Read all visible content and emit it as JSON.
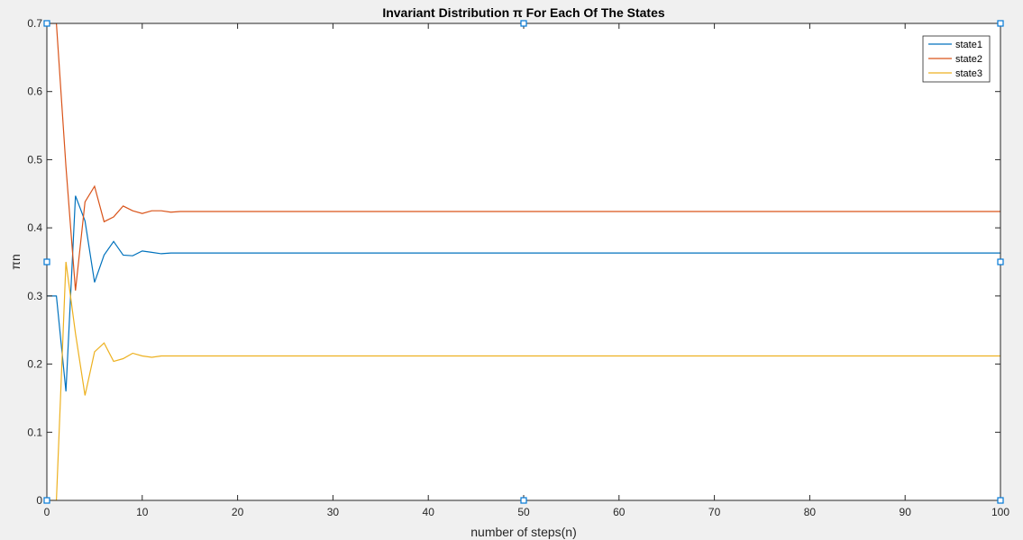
{
  "chart_data": {
    "type": "line",
    "title": "Invariant Distribution π For Each Of The States",
    "xlabel": "number of steps(n)",
    "ylabel": "πn",
    "xlim": [
      0,
      100
    ],
    "ylim": [
      0,
      0.7
    ],
    "x_ticks": [
      "0",
      "10",
      "20",
      "30",
      "40",
      "50",
      "60",
      "70",
      "80",
      "90",
      "100"
    ],
    "y_ticks": [
      "0",
      "0.1",
      "0.2",
      "0.3",
      "0.4",
      "0.5",
      "0.6",
      "0.7"
    ],
    "grid": false,
    "legend_position": "top-right",
    "x": [
      0,
      1,
      2,
      3,
      4,
      5,
      6,
      7,
      8,
      9,
      10,
      11,
      12,
      13,
      14,
      15,
      16,
      17,
      18,
      19,
      20,
      100
    ],
    "series": [
      {
        "name": "state1",
        "color": "#0072BD",
        "values": [
          0.3,
          0.3,
          0.16,
          0.447,
          0.41,
          0.32,
          0.36,
          0.38,
          0.36,
          0.359,
          0.366,
          0.364,
          0.362,
          0.363,
          0.363,
          0.363,
          0.363,
          0.363,
          0.363,
          0.363,
          0.363,
          0.363
        ]
      },
      {
        "name": "state2",
        "color": "#D95319",
        "values": [
          0.7,
          0.7,
          0.49,
          0.308,
          0.438,
          0.461,
          0.409,
          0.416,
          0.432,
          0.425,
          0.421,
          0.425,
          0.425,
          0.423,
          0.424,
          0.424,
          0.424,
          0.424,
          0.424,
          0.424,
          0.424,
          0.424
        ]
      },
      {
        "name": "state3",
        "color": "#EDB120",
        "values": [
          0,
          0,
          0.35,
          0.245,
          0.154,
          0.218,
          0.231,
          0.204,
          0.208,
          0.216,
          0.212,
          0.21,
          0.212,
          0.212,
          0.212,
          0.212,
          0.212,
          0.212,
          0.212,
          0.212,
          0.212,
          0.212
        ]
      }
    ]
  }
}
